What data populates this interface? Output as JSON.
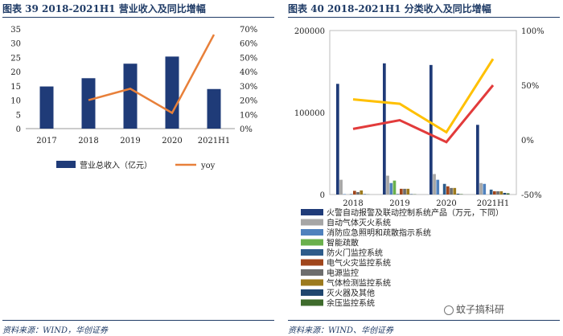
{
  "left": {
    "title": "图表 39    2018-2021H1 营业收入及同比增幅",
    "source": "资料来源：WIND，华创证券",
    "chart_data": {
      "type": "bar",
      "categories": [
        "2017",
        "2018",
        "2019",
        "2020",
        "2021H1"
      ],
      "series": [
        {
          "name": "营业总收入（亿元）",
          "type": "bar",
          "axis": "left",
          "color": "#1f3b78",
          "values": [
            14.8,
            17.7,
            22.8,
            25.3,
            13.9
          ]
        },
        {
          "name": "yoy",
          "type": "line",
          "axis": "right",
          "color": "#e8803a",
          "values": [
            null,
            0.2,
            0.28,
            0.11,
            0.66
          ]
        }
      ],
      "ylim": [
        0,
        35
      ],
      "yticks": [
        0,
        5,
        10,
        15,
        20,
        25,
        30,
        35
      ],
      "y2lim": [
        0,
        0.7
      ],
      "y2ticks": [
        "0%",
        "10%",
        "20%",
        "30%",
        "40%",
        "50%",
        "60%",
        "70%"
      ],
      "legend": "bottom"
    }
  },
  "right": {
    "title": "图表 40    2018-2021H1 分类收入及同比增幅",
    "source": "资料来源：WIND、华创证券",
    "watermark": "蚊子搞科研",
    "chart_data": {
      "type": "bar",
      "categories": [
        "2018",
        "2019",
        "2020",
        "2021H1"
      ],
      "series": [
        {
          "name": "火警自动报警及联动控制系统产品（万元，下同）",
          "color": "#1f3b78",
          "values": [
            135000,
            160000,
            158000,
            85000
          ]
        },
        {
          "name": "自动气体灭火系统",
          "color": "#a6a6a6",
          "values": [
            18000,
            23000,
            25000,
            14000
          ]
        },
        {
          "name": "消防应急照明和疏散指示系统",
          "color": "#4f81bd",
          "values": [
            500,
            14000,
            18000,
            13000
          ]
        },
        {
          "name": "智能疏散",
          "color": "#6ab04c",
          "values": [
            0,
            17000,
            0,
            0
          ]
        },
        {
          "name": "防火门监控系统",
          "color": "#2e5c8a",
          "values": [
            500,
            600,
            13000,
            6000
          ]
        },
        {
          "name": "电气火灾监控系统",
          "color": "#a0461c",
          "values": [
            4500,
            7000,
            10000,
            4000
          ]
        },
        {
          "name": "电源监控",
          "color": "#6d6d6d",
          "values": [
            3000,
            7000,
            8000,
            4000
          ]
        },
        {
          "name": "气体检测监控系统",
          "color": "#9c7a1e",
          "values": [
            5000,
            7000,
            8000,
            4000
          ]
        },
        {
          "name": "灭火器及其他",
          "color": "#20466e",
          "values": [
            500,
            500,
            1000,
            2000
          ]
        },
        {
          "name": "余压监控系统",
          "color": "#3e6b2c",
          "values": [
            200,
            300,
            500,
            1500
          ]
        }
      ],
      "lines": [
        {
          "name": "yellow growth line",
          "color": "#ffc000",
          "values": [
            0.37,
            0.33,
            0.07,
            0.74
          ]
        },
        {
          "name": "red growth line",
          "color": "#e23b3b",
          "values": [
            0.1,
            0.18,
            -0.02,
            0.5
          ]
        }
      ],
      "ylim": [
        0,
        200000
      ],
      "yticks": [
        "0",
        "100000",
        "200000"
      ],
      "y2lim": [
        -0.5,
        1.0
      ],
      "y2ticks": [
        "-50%",
        "0%",
        "50%",
        "100%"
      ],
      "legend": "bottom"
    }
  }
}
